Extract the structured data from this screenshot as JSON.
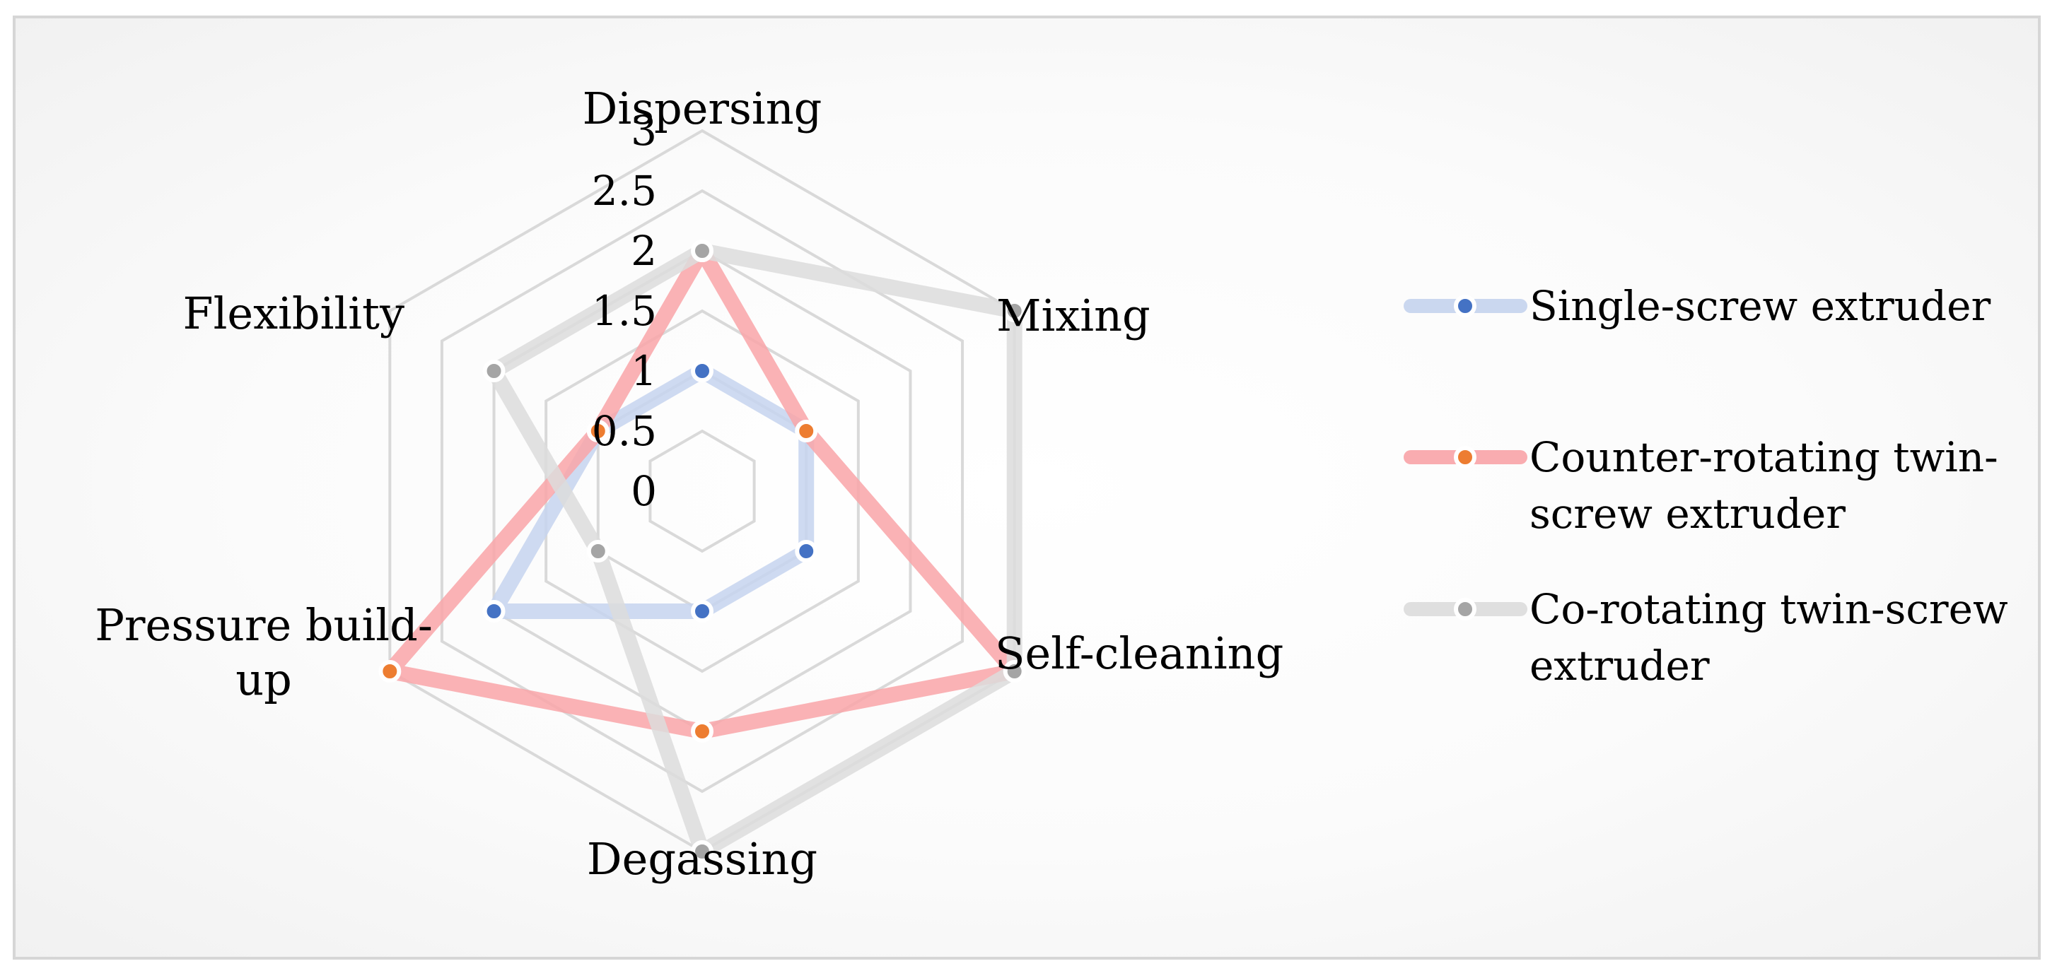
{
  "chart_data": {
    "type": "radar",
    "title": "",
    "categories": [
      "Dispersing",
      "Mixing",
      "Self-cleaning",
      "Degassing",
      "Pressure build-up",
      "Flexibility"
    ],
    "category_label_lines": [
      [
        "Dispersing"
      ],
      [
        "Mixing"
      ],
      [
        "Self-cleaning"
      ],
      [
        "Degassing"
      ],
      [
        "Pressure build-",
        "up"
      ],
      [
        "Flexibility"
      ]
    ],
    "rlim": [
      0,
      3
    ],
    "ticks": [
      "0",
      "0.5",
      "1",
      "1.5",
      "2",
      "2.5",
      "3"
    ],
    "tick_values": [
      0,
      0.5,
      1,
      1.5,
      2,
      2.5,
      3
    ],
    "grid": true,
    "legend_position": "right",
    "series": [
      {
        "name": "Single-screw extruder",
        "legend_lines": [
          "Single-screw extruder"
        ],
        "values": [
          1,
          1,
          1,
          1,
          2,
          1
        ],
        "line_color": "#c5d3ee",
        "marker_color": "#4472c4"
      },
      {
        "name": "Counter-rotating twin-screw extruder",
        "legend_lines": [
          "Counter-rotating twin-",
          "screw extruder"
        ],
        "values": [
          2,
          1,
          3,
          2,
          3,
          1
        ],
        "line_color": "#f9a4a8",
        "marker_color": "#ed7d31"
      },
      {
        "name": "Co-rotating twin-screw extruder",
        "legend_lines": [
          "Co-rotating twin-screw",
          "extruder"
        ],
        "values": [
          2,
          3,
          3,
          3,
          1,
          2
        ],
        "line_color": "#dcdcdc",
        "marker_color": "#a5a5a5"
      }
    ]
  }
}
